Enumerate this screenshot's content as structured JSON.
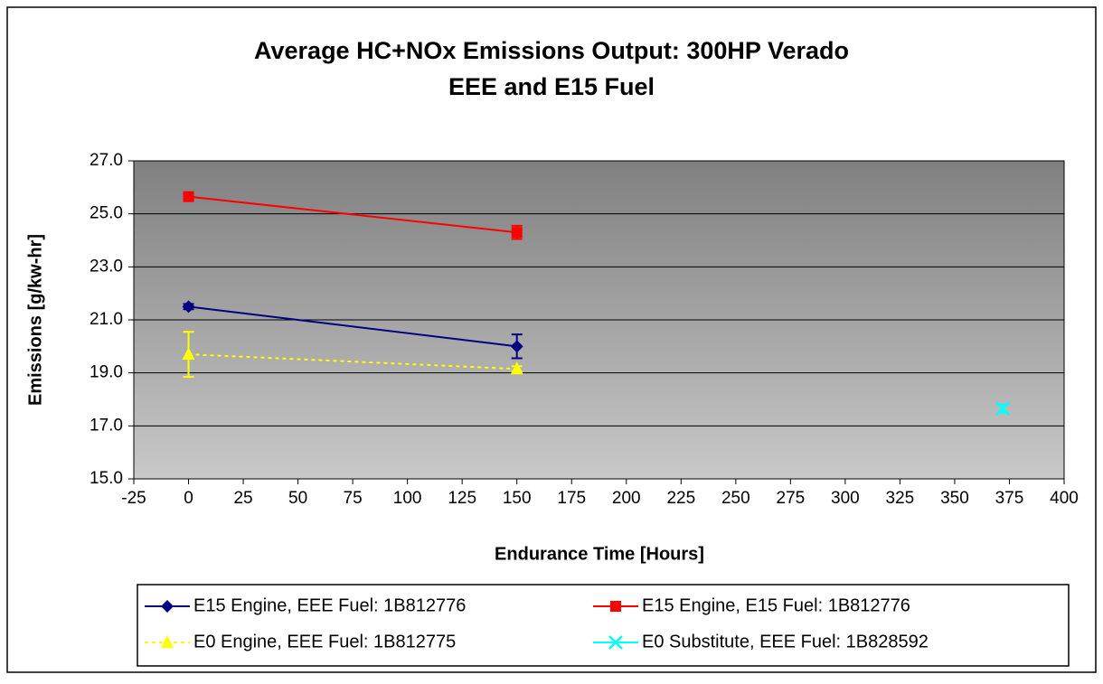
{
  "chart_data": {
    "type": "line",
    "title": "Average HC+NOx Emissions Output: 300HP Verado",
    "subtitle": "EEE and E15 Fuel",
    "xlabel": "Endurance Time [Hours]",
    "ylabel": "Emissions [g/kw-hr]",
    "xlim": [
      -25,
      400
    ],
    "xticks": [
      -25,
      0,
      25,
      50,
      75,
      100,
      125,
      150,
      175,
      200,
      225,
      250,
      275,
      300,
      325,
      350,
      375,
      400
    ],
    "ylim": [
      15,
      27
    ],
    "yticks": [
      {
        "value": 15,
        "label": "15.0"
      },
      {
        "value": 17,
        "label": "17.0"
      },
      {
        "value": 19,
        "label": "19.0"
      },
      {
        "value": 21,
        "label": "21.0"
      },
      {
        "value": 23,
        "label": "23.0"
      },
      {
        "value": 25,
        "label": "25.0"
      },
      {
        "value": 27,
        "label": "27.0"
      }
    ],
    "grid": true,
    "legend": "bottom",
    "series": [
      {
        "name": "E15 Engine, EEE Fuel: 1B812776",
        "color": "#000080",
        "marker": "diamond",
        "dash": false,
        "x": [
          0,
          150
        ],
        "values": [
          21.5,
          20.0
        ],
        "errors": [
          0.1,
          0.45
        ]
      },
      {
        "name": "E15 Engine, E15 Fuel: 1B812776",
        "color": "#ff0000",
        "marker": "square",
        "dash": false,
        "x": [
          0,
          150
        ],
        "values": [
          25.65,
          24.3
        ],
        "errors": [
          0.1,
          0.25
        ]
      },
      {
        "name": "E0 Engine, EEE Fuel: 1B812775",
        "color": "#ffff00",
        "marker": "triangle",
        "dash": true,
        "x": [
          0,
          150
        ],
        "values": [
          19.7,
          19.15
        ],
        "errors": [
          0.85,
          0.1
        ]
      },
      {
        "name": "E0 Substitute, EEE Fuel: 1B828592",
        "color": "#00ffff",
        "marker": "x",
        "dash": false,
        "x": [
          372
        ],
        "values": [
          17.65
        ],
        "errors": [
          0.15
        ]
      }
    ]
  }
}
